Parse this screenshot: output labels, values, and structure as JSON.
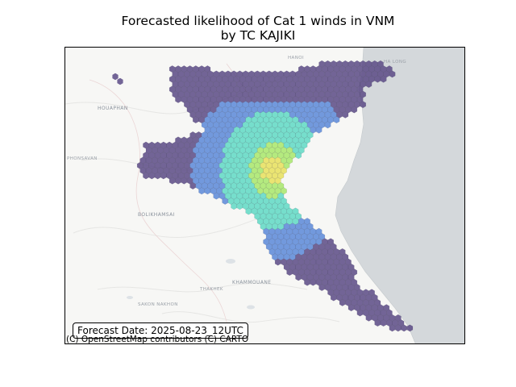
{
  "title_line1": "Forecasted likelihood of Cat 1 winds in VNM",
  "title_line2": "by TC KAJIKI",
  "forecast_label": "Forecast Date: 2025-08-23_12UTC",
  "attribution": "(C) OpenStreetMap contributors (C) CARTO",
  "colors": {
    "low": "#5b4a85",
    "mid_low": "#5a88d8",
    "mid": "#5fd9c4",
    "mid_high": "#a8e86a",
    "high": "#e8e05a",
    "sea": "#d4d8db",
    "land": "#f7f7f5"
  },
  "map_labels": {
    "hanoi": "HANOI",
    "ha_long": "HA LONG",
    "houaphan": "HOUAPHAN",
    "phonsavan": "PHONSAVAN",
    "bolikhamsai": "BOLIKHAMSAI",
    "khammouane": "KHAMMOUANE",
    "thakhek": "THAKHEK",
    "sakon_nakhon": "SAKON NAKHON"
  }
}
